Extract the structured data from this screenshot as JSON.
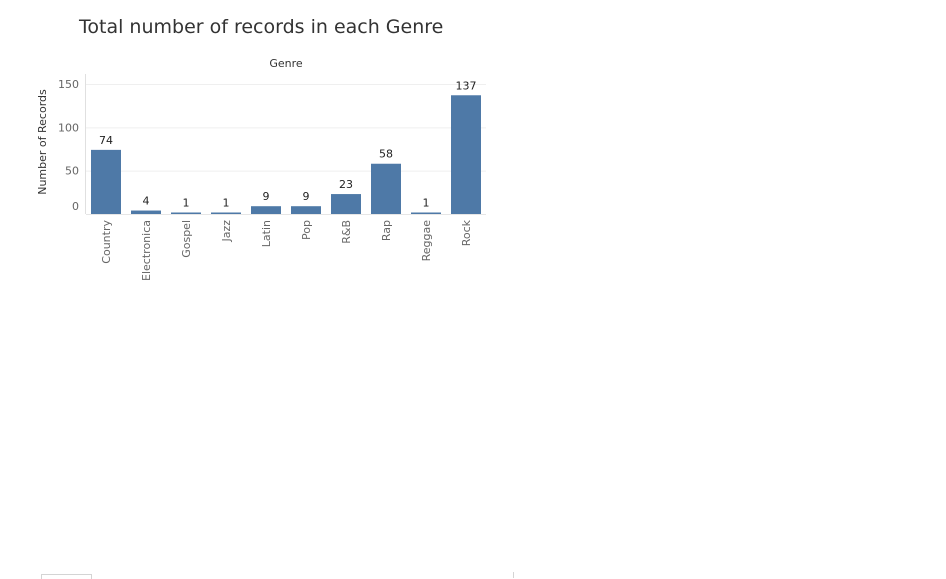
{
  "chart_data": {
    "type": "bar",
    "title": "Total number of records in each Genre",
    "column_header": "Genre",
    "ylabel": "Number of Records",
    "xlabel": "",
    "categories": [
      "Country",
      "Electronica",
      "Gospel",
      "Jazz",
      "Latin",
      "Pop",
      "R&B",
      "Rap",
      "Reggae",
      "Rock"
    ],
    "values": [
      74,
      4,
      1,
      1,
      9,
      9,
      23,
      58,
      1,
      137
    ],
    "ylim": [
      0,
      150
    ],
    "yticks": [
      "0",
      "50",
      "100",
      "150"
    ],
    "grid": true,
    "data_labels": true,
    "bar_color": "#4e79a7"
  }
}
